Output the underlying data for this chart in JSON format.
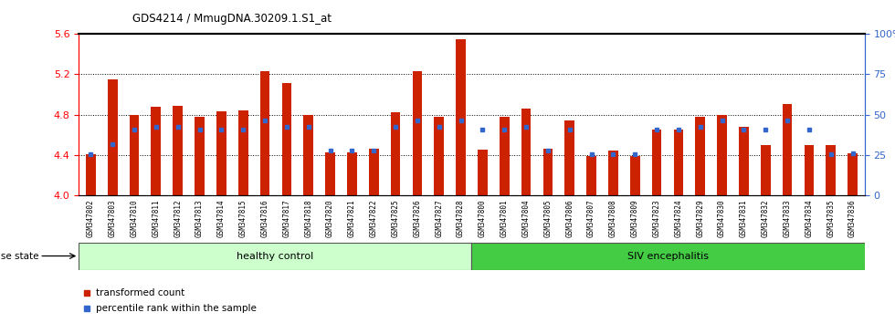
{
  "title": "GDS4214 / MmugDNA.30209.1.S1_at",
  "samples": [
    "GSM347802",
    "GSM347803",
    "GSM347810",
    "GSM347811",
    "GSM347812",
    "GSM347813",
    "GSM347814",
    "GSM347815",
    "GSM347816",
    "GSM347817",
    "GSM347818",
    "GSM347820",
    "GSM347821",
    "GSM347822",
    "GSM347825",
    "GSM347826",
    "GSM347827",
    "GSM347828",
    "GSM347800",
    "GSM347801",
    "GSM347804",
    "GSM347805",
    "GSM347806",
    "GSM347807",
    "GSM347808",
    "GSM347809",
    "GSM347823",
    "GSM347824",
    "GSM347829",
    "GSM347830",
    "GSM347831",
    "GSM347832",
    "GSM347833",
    "GSM347834",
    "GSM347835",
    "GSM347836"
  ],
  "bar_values": [
    4.41,
    5.15,
    4.8,
    4.88,
    4.89,
    4.78,
    4.83,
    4.84,
    5.23,
    5.11,
    4.8,
    4.43,
    4.43,
    4.46,
    4.82,
    5.23,
    4.78,
    5.55,
    4.45,
    4.78,
    4.86,
    4.46,
    4.74,
    4.39,
    4.44,
    4.39,
    4.65,
    4.65,
    4.78,
    4.8,
    4.68,
    4.5,
    4.91,
    4.5,
    4.5,
    4.42
  ],
  "percentile_values": [
    4.41,
    4.51,
    4.65,
    4.68,
    4.68,
    4.65,
    4.65,
    4.65,
    4.74,
    4.68,
    4.68,
    4.44,
    4.44,
    4.44,
    4.68,
    4.74,
    4.68,
    4.74,
    4.65,
    4.65,
    4.68,
    4.44,
    4.65,
    4.41,
    4.41,
    4.41,
    4.65,
    4.65,
    4.68,
    4.74,
    4.65,
    4.65,
    4.74,
    4.65,
    4.41,
    4.42
  ],
  "healthy_count": 18,
  "ymin": 4.0,
  "ymax": 5.6,
  "yticks_left": [
    4.0,
    4.4,
    4.8,
    5.2,
    5.6
  ],
  "yticks_right_vals": [
    0,
    25,
    50,
    75,
    100
  ],
  "yticks_right_labels": [
    "0",
    "25",
    "50",
    "75",
    "100%"
  ],
  "bar_color": "#cc2200",
  "percentile_color": "#3366cc",
  "healthy_color": "#ccffcc",
  "siv_color": "#44cc44",
  "group_labels": [
    "healthy control",
    "SIV encephalitis"
  ],
  "legend_labels": [
    "transformed count",
    "percentile rank within the sample"
  ]
}
